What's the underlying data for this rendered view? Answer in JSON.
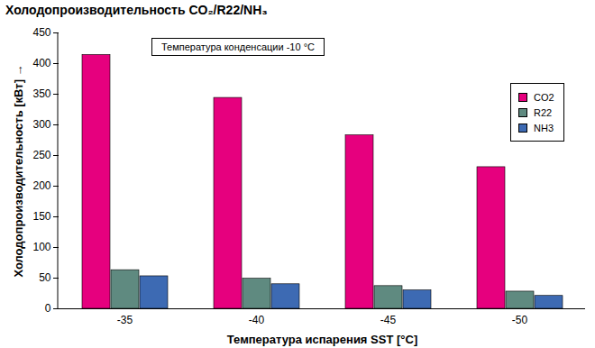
{
  "chart_data": {
    "type": "bar",
    "title": "Холодопроизводительность CO₂/R22/NH₃",
    "annotation": "Температура конденсации -10 °C",
    "x_label": "Температура испарения SST [°C]",
    "y_label": "Холодопроизводительность [кВт]",
    "categories": [
      "-35",
      "-40",
      "-45",
      "-50"
    ],
    "series": [
      {
        "name": "CO2",
        "color": "#e6007e",
        "values": [
          414,
          344,
          283,
          231
        ]
      },
      {
        "name": "R22",
        "color": "#5f8a80",
        "values": [
          63,
          49,
          37,
          28
        ]
      },
      {
        "name": "NH3",
        "color": "#3d6ab3",
        "values": [
          53,
          40,
          30,
          21
        ]
      }
    ],
    "ylim": [
      0,
      450
    ],
    "yticks": [
      0,
      50,
      100,
      150,
      200,
      250,
      300,
      350,
      400,
      450
    ],
    "grid": false,
    "legend": "right"
  }
}
